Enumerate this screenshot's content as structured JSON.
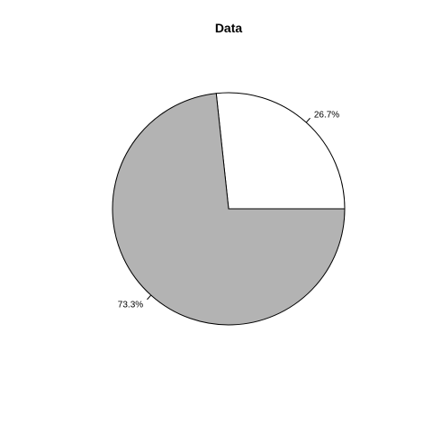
{
  "chart_data": {
    "type": "pie",
    "title": "Data",
    "start_angle_deg": 0,
    "direction": "counterclockwise",
    "slices": [
      {
        "label": "26.7%",
        "value": 26.7,
        "color": "#ffffff"
      },
      {
        "label": "73.3%",
        "value": 73.3,
        "color": "#b3b3b3"
      }
    ],
    "outline_color": "#000000"
  }
}
